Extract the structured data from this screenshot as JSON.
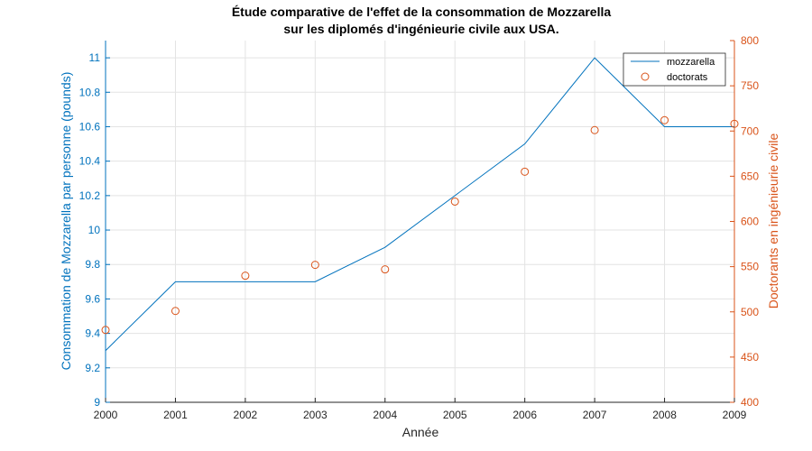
{
  "chart_data": {
    "type": "line",
    "title_line1": "Étude comparative de l'effet de la consommation de Mozzarella",
    "title_line2": "sur les diplomés d'ingénieurie civile aux USA.",
    "xlabel": "Année",
    "ylabel_left": "Consommation de Mozzarella par personne (pounds)",
    "ylabel_right": "Doctorants en ingénieurie civile",
    "x": [
      2000,
      2001,
      2002,
      2003,
      2004,
      2005,
      2006,
      2007,
      2008,
      2009
    ],
    "xlim": [
      2000,
      2009
    ],
    "ylim_left": [
      9,
      11.1
    ],
    "ylim_right": [
      400,
      800
    ],
    "xticks": [
      "2000",
      "2001",
      "2002",
      "2003",
      "2004",
      "2005",
      "2006",
      "2007",
      "2008",
      "2009"
    ],
    "yticks_left": [
      "9",
      "9.2",
      "9.4",
      "9.6",
      "9.8",
      "10",
      "10.2",
      "10.4",
      "10.6",
      "10.8",
      "11"
    ],
    "yticks_right": [
      "400",
      "450",
      "500",
      "550",
      "600",
      "650",
      "700",
      "750",
      "800"
    ],
    "grid": true,
    "legend_position": "top-right",
    "series": [
      {
        "name": "mozzarella",
        "style": "line",
        "axis": "left",
        "color": "#0072BD",
        "values": [
          9.3,
          9.7,
          9.7,
          9.7,
          9.9,
          10.2,
          10.5,
          11.0,
          10.6,
          10.6
        ]
      },
      {
        "name": "doctorats",
        "style": "circle-markers",
        "axis": "right",
        "color": "#D95319",
        "values": [
          480,
          501,
          540,
          552,
          547,
          622,
          655,
          701,
          712,
          708
        ]
      }
    ]
  }
}
